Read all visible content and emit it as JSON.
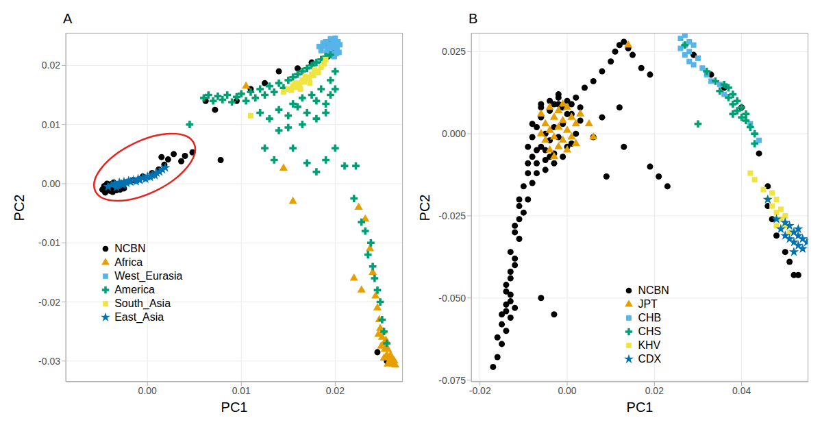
{
  "chart_data": [
    {
      "type": "scatter",
      "title": "A",
      "x_label": "PC1",
      "y_label": "PC2",
      "xlim": [
        -0.0087,
        0.0272
      ],
      "ylim": [
        -0.0335,
        0.0255
      ],
      "xticks": [
        {
          "value": 0,
          "label": "0.00"
        },
        0.01,
        0.02
      ],
      "yticks": [
        -0.03,
        -0.02,
        -0.01,
        {
          "value": 0,
          "label": "0.00"
        },
        0.01,
        0.02
      ],
      "grid": true,
      "legend": "lower left",
      "series": [
        {
          "name": "NCBN",
          "color": "#000000",
          "marker": "circle",
          "x": [
            -0.0048,
            -0.0046,
            -0.0045,
            -0.0043,
            -0.0042,
            -0.004,
            -0.004,
            -0.0038,
            -0.0037,
            -0.0036,
            -0.0035,
            -0.0034,
            -0.0033,
            -0.0031,
            -0.003,
            -0.0029,
            -0.0027,
            -0.0025,
            -0.0044,
            -0.0039,
            -0.0015,
            -0.0005,
            0.0005,
            0.0012,
            0.0018,
            0.0022,
            0.0028,
            0.0036,
            0.004,
            0.0048,
            0.0015,
            0.0078,
            0.0062,
            0.0072,
            0.0095,
            0.011,
            0.0125,
            0.014,
            0.016,
            0.0175,
            0.0188,
            0.0195,
            0.02,
            0.0192,
            0.0255,
            0.0245
          ],
          "values": [
            -0.001,
            -0.0004,
            -0.0015,
            0,
            -0.0008,
            -0.0012,
            -0.0003,
            -0.0006,
            -0.0014,
            0.0002,
            -0.0009,
            -0.0004,
            -0.0011,
            -0.0006,
            -0.0001,
            -0.001,
            -0.0005,
            -0.0008,
            -0.0006,
            -0.0001,
            0.0006,
            0.0012,
            0.0018,
            0.0024,
            0.0032,
            0.0041,
            0.005,
            0.0038,
            0.0047,
            0.0053,
            0.0045,
            0.004,
            0.014,
            0.0125,
            0.014,
            0.016,
            0.017,
            0.019,
            0.0195,
            0.0205,
            0.0235,
            0.024,
            0.0225,
            0.0215,
            -0.03,
            -0.0285
          ]
        },
        {
          "name": "Africa",
          "color": "#E69F00",
          "marker": "triangle",
          "x": [
            0.0145,
            0.0155,
            0.0225,
            0.0232,
            0.022,
            0.0228,
            0.0237,
            0.024,
            0.0243,
            0.0245,
            0.0247,
            0.0248,
            0.025,
            0.0251,
            0.0252,
            0.0253,
            0.0254,
            0.0255,
            0.0256,
            0.0257,
            0.0258,
            0.0259,
            0.026,
            0.0261,
            0.0262,
            0.0263,
            0.0264,
            0.0256,
            0.0252,
            0.0249,
            0.0246,
            0.0105
          ],
          "values": [
            0.0026,
            -0.003,
            -0.004,
            -0.006,
            -0.016,
            -0.018,
            -0.011,
            -0.015,
            -0.019,
            -0.021,
            -0.023,
            -0.0245,
            -0.026,
            -0.025,
            -0.027,
            -0.028,
            -0.0265,
            -0.029,
            -0.028,
            -0.0295,
            -0.03,
            -0.029,
            -0.0303,
            -0.0298,
            -0.0305,
            -0.03,
            -0.0307,
            -0.0305,
            -0.0295,
            -0.0275,
            -0.0255,
            0.0165
          ]
        },
        {
          "name": "West_Eurasia",
          "color": "#56B4E9",
          "marker": "square",
          "x": [
            0.0185,
            0.0188,
            0.019,
            0.0192,
            0.0194,
            0.0195,
            0.0197,
            0.0198,
            0.02,
            0.02,
            0.0202,
            0.0203,
            0.0204,
            0.0205,
            0.0187,
            0.0191,
            0.0196,
            0.0199,
            0.0201,
            0.0183
          ],
          "values": [
            0.0225,
            0.0232,
            0.024,
            0.0228,
            0.0236,
            0.0245,
            0.023,
            0.024,
            0.0234,
            0.0246,
            0.0228,
            0.024,
            0.0222,
            0.0235,
            0.0238,
            0.0222,
            0.0221,
            0.0215,
            0.022,
            0.0232
          ]
        },
        {
          "name": "America",
          "color": "#009E73",
          "marker": "cross",
          "x": [
            0.0045,
            0.006,
            0.0065,
            0.007,
            0.0075,
            0.008,
            0.0085,
            0.009,
            0.0095,
            0.01,
            0.0105,
            0.011,
            0.0115,
            0.012,
            0.0125,
            0.013,
            0.0135,
            0.014,
            0.0145,
            0.015,
            0.0155,
            0.016,
            0.0165,
            0.017,
            0.0175,
            0.018,
            0.0185,
            0.019,
            0.0195,
            0.012,
            0.013,
            0.014,
            0.015,
            0.016,
            0.017,
            0.018,
            0.019,
            0.0195,
            0.0185,
            0.0175,
            0.0165,
            0.0155,
            0.02,
            0.0195,
            0.02,
            0.019,
            0.018,
            0.0165,
            0.015,
            0.014,
            0.0125,
            0.0135,
            0.0155,
            0.017,
            0.018,
            0.019,
            0.02,
            0.021,
            0.0222,
            0.022,
            0.0228,
            0.0232,
            0.0235,
            0.024,
            0.0242,
            0.0245,
            0.0248,
            0.025,
            0.0252,
            0.0255,
            0.0238
          ],
          "values": [
            0.01,
            0.0145,
            0.015,
            0.014,
            0.0148,
            0.0142,
            0.015,
            0.0138,
            0.0147,
            0.0152,
            0.014,
            0.0155,
            0.0145,
            0.016,
            0.015,
            0.0165,
            0.0155,
            0.017,
            0.0162,
            0.0175,
            0.018,
            0.0185,
            0.019,
            0.0195,
            0.02,
            0.0205,
            0.021,
            0.0215,
            0.0218,
            0.012,
            0.011,
            0.0125,
            0.0115,
            0.013,
            0.012,
            0.014,
            0.0135,
            0.015,
            0.016,
            0.015,
            0.0145,
            0.0135,
            0.016,
            0.0175,
            0.019,
            0.012,
            0.011,
            0.01,
            0.0095,
            0.009,
            0.006,
            0.004,
            0.006,
            0.0035,
            0.002,
            0.004,
            0.006,
            0.003,
            0.003,
            -0.0025,
            -0.0065,
            -0.008,
            -0.012,
            -0.014,
            -0.016,
            -0.018,
            -0.02,
            -0.023,
            -0.025,
            -0.027,
            -0.01
          ]
        },
        {
          "name": "South_Asia",
          "color": "#F0E442",
          "marker": "square",
          "x": [
            0.0145,
            0.015,
            0.0153,
            0.0155,
            0.0158,
            0.016,
            0.0162,
            0.0165,
            0.0167,
            0.017,
            0.0172,
            0.0175,
            0.0177,
            0.018,
            0.0182,
            0.0185,
            0.0188,
            0.019,
            0.0157,
            0.0168,
            0.0178,
            0.0163,
            0.0173,
            0.011
          ],
          "values": [
            0.0155,
            0.016,
            0.0158,
            0.0165,
            0.0163,
            0.017,
            0.0168,
            0.0175,
            0.0172,
            0.018,
            0.0178,
            0.0185,
            0.0183,
            0.019,
            0.0188,
            0.0197,
            0.0203,
            0.021,
            0.017,
            0.0181,
            0.0192,
            0.016,
            0.017,
            0.0115
          ]
        },
        {
          "name": "East_Asia",
          "color": "#0072B2",
          "marker": "star",
          "x": [
            -0.0042,
            -0.0038,
            -0.0035,
            -0.0032,
            -0.003,
            -0.0028,
            -0.0025,
            -0.0022,
            -0.002,
            -0.0018,
            -0.0015,
            -0.0012,
            -0.001,
            -0.0008,
            -0.0005,
            -0.0002,
            0,
            0.0003,
            0.0005,
            0.0008,
            0.001,
            0.0013,
            0.0016,
            0.0019,
            -0.0033,
            -0.0026
          ],
          "values": [
            -0.0005,
            -0.0002,
            0,
            -0.0003,
            0.0002,
            0,
            0.0003,
            0.0001,
            0.0005,
            0.0003,
            0.0006,
            0.0004,
            0.0008,
            0.0006,
            0.001,
            0.0008,
            0.0012,
            0.0011,
            0.0015,
            0.0014,
            0.0018,
            0.002,
            0.0024,
            0.0027,
            -0.0006,
            -0.0002
          ]
        }
      ]
    },
    {
      "type": "scatter",
      "title": "B",
      "x_label": "PC1",
      "y_label": "PC2",
      "xlim": [
        -0.022,
        0.0553
      ],
      "ylim": [
        -0.0755,
        0.0307
      ],
      "xticks": [
        -0.02,
        {
          "value": 0,
          "label": "0.00"
        },
        0.02,
        0.04
      ],
      "yticks": [
        0.025,
        {
          "value": 0,
          "label": "0.000"
        },
        -0.025,
        {
          "value": -0.05,
          "label": "-0.050"
        },
        -0.075
      ],
      "grid": true,
      "legend": "bottom",
      "series": [
        {
          "name": "NCBN",
          "color": "#000000",
          "marker": "circle",
          "x": [
            0.002,
            0,
            -0.002,
            -0.004,
            -0.006,
            -0.007,
            -0.008,
            -0.009,
            -0.008,
            -0.007,
            -0.005,
            -0.003,
            0,
            0.002,
            0.003,
            0.001,
            -0.001,
            -0.003,
            -0.005,
            -0.006,
            -0.004,
            -0.002,
            -0.009,
            -0.01,
            -0.011,
            -0.01,
            -0.012,
            -0.011,
            -0.013,
            -0.012,
            -0.013,
            -0.014,
            -0.013,
            -0.012,
            -0.014,
            -0.013,
            -0.015,
            -0.014,
            -0.015,
            -0.016,
            -0.017,
            -0.008,
            -0.009,
            -0.006,
            -0.003,
            0.004,
            0.006,
            0.008,
            0.01,
            0.011,
            0.012,
            0.013,
            0.014,
            0.015,
            0.017,
            0.019,
            0.006,
            0.009,
            0.013,
            0.019,
            0.021,
            0.023,
            0.008,
            0.012,
            0.029,
            0.033,
            0.036,
            0.04,
            0.044,
            0.046,
            0.046,
            0.047,
            0.05,
            0.052,
            0.053,
            0.048,
            0.051,
            -0.008,
            -0.007,
            -0.006,
            -0.005,
            -0.004,
            -0.003,
            -0.002,
            -0.001,
            0,
            0.001,
            -0.009,
            -0.007,
            -0.005,
            -0.003,
            -0.001,
            0.001,
            0.003,
            -0.006,
            -0.004,
            -0.002,
            -0.011,
            -0.012,
            -0.013,
            -0.014,
            -0.012,
            -0.014,
            -0.016,
            -0.015,
            -0.013,
            -0.011
          ],
          "values": [
            0.011,
            0.01,
            0.009,
            0.007,
            0.005,
            0.002,
            -0.001,
            -0.004,
            -0.007,
            -0.009,
            -0.008,
            -0.006,
            -0.004,
            0,
            0.004,
            0.006,
            0.003,
            0.002,
            0,
            -0.004,
            -0.002,
            -0.001,
            -0.012,
            -0.016,
            -0.02,
            -0.024,
            -0.028,
            -0.032,
            -0.036,
            -0.04,
            -0.044,
            -0.048,
            -0.051,
            -0.053,
            -0.054,
            -0.056,
            -0.058,
            -0.06,
            -0.064,
            -0.068,
            -0.071,
            -0.015,
            -0.02,
            -0.05,
            -0.055,
            0.014,
            0.016,
            0.019,
            0.022,
            0.025,
            0.027,
            0.028,
            0.026,
            0.024,
            0.02,
            0.018,
            -0.001,
            -0.013,
            -0.004,
            -0.01,
            -0.013,
            -0.016,
            0.005,
            0.008,
            0.024,
            0.018,
            0.014,
            0.008,
            -0.006,
            -0.016,
            -0.022,
            -0.026,
            -0.036,
            -0.043,
            -0.043,
            -0.031,
            -0.039,
            0.003,
            -0.005,
            0.008,
            -0.005,
            0.01,
            0.009,
            0.011,
            0.008,
            0.006,
            0.009,
            -0.009,
            -0.012,
            -0.011,
            -0.009,
            -0.007,
            -0.003,
            0.008,
            0.009,
            -0.007,
            0.012,
            -0.022,
            -0.03,
            -0.042,
            -0.046,
            -0.038,
            -0.052,
            -0.062,
            -0.055,
            -0.049,
            -0.026
          ]
        },
        {
          "name": "JPT",
          "color": "#E69F00",
          "marker": "triangle",
          "x": [
            -0.006,
            -0.005,
            -0.005,
            -0.004,
            -0.004,
            -0.004,
            -0.003,
            -0.003,
            -0.003,
            -0.002,
            -0.002,
            -0.002,
            -0.001,
            -0.001,
            0,
            0,
            0,
            0.001,
            0.001,
            0.002,
            0.002,
            0.003,
            -0.006,
            -0.001,
            0.005,
            0.006,
            0.014
          ],
          "values": [
            0.006,
            0.003,
            -0.002,
            0.008,
            0.001,
            -0.005,
            0.005,
            -0.001,
            -0.007,
            0.007,
            0.002,
            -0.004,
            0.004,
            -0.002,
            0.008,
            0.001,
            -0.005,
            0.005,
            -0.001,
            0.003,
            -0.003,
            0.006,
            0,
            0.009,
            0.003,
            -0.001,
            0.027
          ]
        },
        {
          "name": "CHB",
          "color": "#56B4E9",
          "marker": "square",
          "x": [
            0.026,
            0.026,
            0.027,
            0.027,
            0.027,
            0.028,
            0.028,
            0.028,
            0.029,
            0.029,
            0.03,
            0.031,
            0.032,
            0.033,
            0.035,
            0.036,
            0.042,
            0.044
          ],
          "values": [
            0.029,
            0.026,
            0.03,
            0.027,
            0.024,
            0.028,
            0.025,
            0.022,
            0.027,
            0.021,
            0.023,
            0.02,
            0.018,
            0.016,
            0.015,
            0.012,
            0.003,
            -0.002
          ]
        },
        {
          "name": "CHS",
          "color": "#009E73",
          "marker": "cross",
          "x": [
            0.027,
            0.03,
            0.032,
            0.034,
            0.035,
            0.036,
            0.037,
            0.037,
            0.038,
            0.038,
            0.039,
            0.039,
            0.04,
            0.04,
            0.041,
            0.041,
            0.042,
            0.043,
            0.043,
            0.038
          ],
          "values": [
            0.027,
            0.003,
            0.019,
            0.016,
            0.013,
            0.015,
            0.011,
            0.014,
            0.012,
            0.009,
            0.01,
            0.007,
            0.008,
            0.005,
            0.004,
            0.006,
            0.002,
            0,
            -0.003,
            0.006
          ]
        },
        {
          "name": "KHV",
          "color": "#F0E442",
          "marker": "square",
          "x": [
            0.042,
            0.043,
            0.045,
            0.046,
            0.047,
            0.047,
            0.048,
            0.048,
            0.049,
            0.049,
            0.05,
            0.05,
            0.048,
            0.051
          ],
          "values": [
            -0.012,
            -0.014,
            -0.017,
            -0.02,
            -0.018,
            -0.022,
            -0.024,
            -0.02,
            -0.026,
            -0.023,
            -0.028,
            -0.025,
            -0.028,
            -0.03
          ]
        },
        {
          "name": "CDX",
          "color": "#0072B2",
          "marker": "star",
          "x": [
            0.046,
            0.048,
            0.049,
            0.05,
            0.05,
            0.051,
            0.051,
            0.052,
            0.052,
            0.053,
            0.053,
            0.053,
            0.054,
            0.054,
            0.052,
            0.055
          ],
          "values": [
            -0.02,
            -0.026,
            -0.029,
            -0.027,
            -0.031,
            -0.028,
            -0.032,
            -0.03,
            -0.033,
            -0.031,
            -0.034,
            -0.029,
            -0.032,
            -0.035,
            -0.036,
            -0.033
          ]
        }
      ]
    }
  ]
}
